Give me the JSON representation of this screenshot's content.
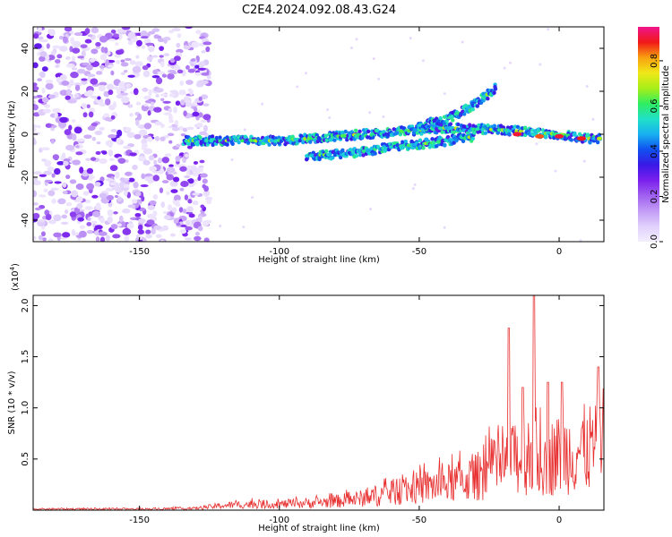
{
  "title": "C2E4.2024.092.08.43.G24",
  "chart_data": [
    {
      "type": "heatmap",
      "name": "spectrogram",
      "xlabel": "Height of straight line (km)",
      "ylabel": "Frequency (Hz)",
      "xlim": [
        -188,
        16
      ],
      "ylim": [
        -50,
        50
      ],
      "xticks": [
        -150,
        -100,
        -50,
        0
      ],
      "yticks": [
        -40,
        -20,
        0,
        20,
        40
      ],
      "colorbar": {
        "label": "Normalized spectral amplitude",
        "range": [
          0,
          0.95
        ],
        "ticks": [
          0.0,
          0.2,
          0.4,
          0.6,
          0.8
        ],
        "colors": [
          "#f4eefe",
          "#e0d0fb",
          "#c39cf6",
          "#a060f0",
          "#7a20ee",
          "#3a18e6",
          "#1050f0",
          "#18b0f0",
          "#20e0c8",
          "#30ee60",
          "#a8ee18",
          "#f0e818",
          "#f8a010",
          "#f01818",
          "#f0148c"
        ]
      },
      "noise_region": {
        "x": [
          -188,
          -125
        ],
        "y": [
          -50,
          50
        ],
        "amplitude": [
          0.02,
          0.3
        ]
      },
      "tracks": [
        {
          "name": "main-trace",
          "points": [
            [
              -134,
              -3
            ],
            [
              -120,
              -3
            ],
            [
              -100,
              -3
            ],
            [
              -80,
              -1
            ],
            [
              -60,
              1
            ],
            [
              -40,
              3
            ],
            [
              -20,
              2
            ],
            [
              -10,
              1
            ],
            [
              0,
              0
            ],
            [
              10,
              -2
            ],
            [
              15,
              -2
            ]
          ]
        },
        {
          "name": "upper-branch",
          "points": [
            [
              -50,
              4
            ],
            [
              -40,
              7
            ],
            [
              -30,
              14
            ],
            [
              -22,
              22
            ]
          ]
        },
        {
          "name": "lower-branch",
          "points": [
            [
              -90,
              -10
            ],
            [
              -75,
              -9
            ],
            [
              -60,
              -6
            ],
            [
              -45,
              -4
            ],
            [
              -30,
              -1
            ]
          ]
        }
      ],
      "peaks": [
        {
          "x": -15,
          "y": 0,
          "amplitude": 0.9
        },
        {
          "x": -7,
          "y": -1,
          "amplitude": 0.85
        },
        {
          "x": 0,
          "y": -1,
          "amplitude": 0.9
        },
        {
          "x": 8,
          "y": -2,
          "amplitude": 0.88
        }
      ]
    },
    {
      "type": "line",
      "name": "snr",
      "xlabel": "Height of straight line (km)",
      "ylabel": "SNR (10 * v/v)",
      "y_multiplier": "(x10",
      "y_multiplier_exp": "4",
      "y_multiplier_close": ")",
      "xlim": [
        -188,
        16
      ],
      "ylim": [
        0,
        2.1
      ],
      "xticks": [
        -150,
        -100,
        -50,
        0
      ],
      "yticks": [
        0.5,
        1.0,
        1.5,
        2.0
      ],
      "ytick_labels": [
        "0.5",
        "1.0",
        "1.5",
        "2.0"
      ],
      "series": [
        {
          "name": "SNR",
          "color": "#e83030",
          "envelope": [
            [
              -188,
              0.02
            ],
            [
              -150,
              0.02
            ],
            [
              -130,
              0.03
            ],
            [
              -120,
              0.08
            ],
            [
              -110,
              0.1
            ],
            [
              -100,
              0.1
            ],
            [
              -90,
              0.12
            ],
            [
              -80,
              0.15
            ],
            [
              -70,
              0.2
            ],
            [
              -60,
              0.3
            ],
            [
              -50,
              0.38
            ],
            [
              -40,
              0.45
            ],
            [
              -30,
              0.55
            ],
            [
              -25,
              0.7
            ],
            [
              -20,
              0.7
            ],
            [
              -15,
              0.9
            ],
            [
              -10,
              0.9
            ],
            [
              -5,
              0.85
            ],
            [
              0,
              0.95
            ],
            [
              5,
              1.0
            ],
            [
              10,
              1.05
            ],
            [
              15,
              1.1
            ]
          ],
          "spikes": [
            [
              -18,
              1.78
            ],
            [
              -13,
              1.2
            ],
            [
              -9,
              2.1
            ],
            [
              -4,
              1.25
            ],
            [
              1,
              1.25
            ],
            [
              14,
              1.4
            ]
          ]
        }
      ]
    }
  ]
}
